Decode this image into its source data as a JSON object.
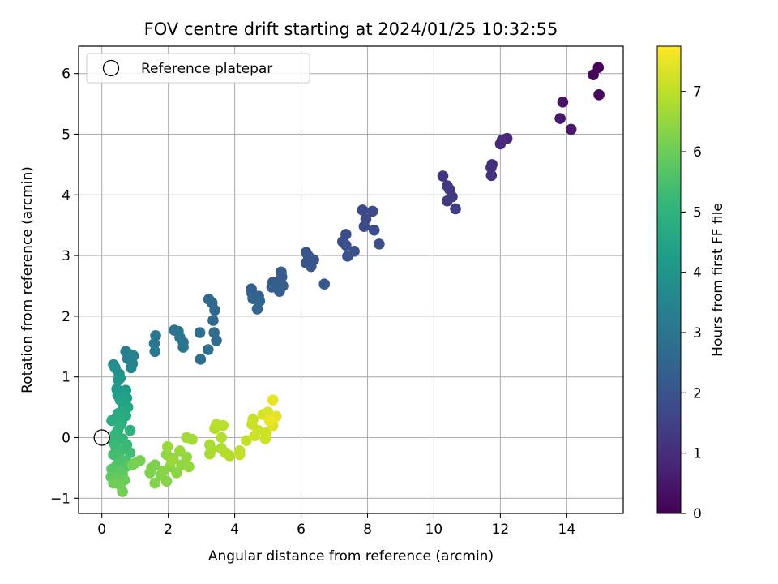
{
  "chart_data": {
    "type": "scatter",
    "title": "FOV centre drift starting at 2024/01/25 10:32:55",
    "xlabel": "Angular distance from reference (arcmin)",
    "ylabel": "Rotation from reference (arcmin)",
    "xlim": [
      -0.7,
      15.7
    ],
    "ylim": [
      -1.25,
      6.45
    ],
    "x_ticks": [
      0,
      2,
      4,
      6,
      8,
      10,
      12,
      14
    ],
    "y_ticks": [
      -1,
      0,
      1,
      2,
      3,
      4,
      5,
      6
    ],
    "grid": true,
    "legend": {
      "placement": "top-left",
      "entries": [
        {
          "label": "Reference platepar",
          "marker": "open-circle"
        }
      ]
    },
    "reference_point": {
      "x": 0,
      "y": 0
    },
    "colorbar": {
      "label": "Hours from first FF file",
      "colormap": "viridis",
      "range": [
        0,
        7.75
      ],
      "ticks": [
        0,
        1,
        2,
        3,
        4,
        5,
        6,
        7
      ]
    },
    "points": [
      {
        "x": 14.95,
        "y": 6.1,
        "h": 0.05
      },
      {
        "x": 14.8,
        "y": 5.98,
        "h": 0.1
      },
      {
        "x": 14.97,
        "y": 5.65,
        "h": 0.15
      },
      {
        "x": 13.88,
        "y": 5.53,
        "h": 0.45
      },
      {
        "x": 13.8,
        "y": 5.26,
        "h": 0.5
      },
      {
        "x": 14.13,
        "y": 5.08,
        "h": 0.55
      },
      {
        "x": 12.2,
        "y": 4.93,
        "h": 0.85
      },
      {
        "x": 12.05,
        "y": 4.9,
        "h": 0.9
      },
      {
        "x": 12.0,
        "y": 4.84,
        "h": 0.95
      },
      {
        "x": 11.75,
        "y": 4.5,
        "h": 1.0
      },
      {
        "x": 11.72,
        "y": 4.45,
        "h": 1.05
      },
      {
        "x": 11.73,
        "y": 4.32,
        "h": 1.1
      },
      {
        "x": 10.27,
        "y": 4.31,
        "h": 1.2
      },
      {
        "x": 10.4,
        "y": 4.15,
        "h": 1.25
      },
      {
        "x": 10.47,
        "y": 4.09,
        "h": 1.3
      },
      {
        "x": 10.55,
        "y": 3.97,
        "h": 1.35
      },
      {
        "x": 10.4,
        "y": 3.9,
        "h": 1.4
      },
      {
        "x": 10.65,
        "y": 3.77,
        "h": 1.45
      },
      {
        "x": 7.85,
        "y": 3.75,
        "h": 1.7
      },
      {
        "x": 8.15,
        "y": 3.73,
        "h": 1.72
      },
      {
        "x": 7.95,
        "y": 3.6,
        "h": 1.75
      },
      {
        "x": 7.9,
        "y": 3.48,
        "h": 1.78
      },
      {
        "x": 8.2,
        "y": 3.42,
        "h": 1.8
      },
      {
        "x": 8.35,
        "y": 3.19,
        "h": 1.82
      },
      {
        "x": 7.35,
        "y": 3.35,
        "h": 1.85
      },
      {
        "x": 7.25,
        "y": 3.23,
        "h": 1.88
      },
      {
        "x": 7.35,
        "y": 3.17,
        "h": 1.9
      },
      {
        "x": 7.6,
        "y": 3.07,
        "h": 1.92
      },
      {
        "x": 7.4,
        "y": 2.99,
        "h": 1.95
      },
      {
        "x": 6.15,
        "y": 3.05,
        "h": 2.0
      },
      {
        "x": 6.22,
        "y": 2.99,
        "h": 2.03
      },
      {
        "x": 6.38,
        "y": 2.93,
        "h": 2.05
      },
      {
        "x": 6.15,
        "y": 2.88,
        "h": 2.08
      },
      {
        "x": 6.3,
        "y": 2.82,
        "h": 2.1
      },
      {
        "x": 6.7,
        "y": 2.53,
        "h": 2.12
      },
      {
        "x": 5.4,
        "y": 2.73,
        "h": 2.2
      },
      {
        "x": 5.42,
        "y": 2.65,
        "h": 2.22
      },
      {
        "x": 5.15,
        "y": 2.56,
        "h": 2.25
      },
      {
        "x": 5.25,
        "y": 2.52,
        "h": 2.28
      },
      {
        "x": 5.45,
        "y": 2.5,
        "h": 2.3
      },
      {
        "x": 5.12,
        "y": 2.48,
        "h": 2.32
      },
      {
        "x": 5.35,
        "y": 2.41,
        "h": 2.35
      },
      {
        "x": 4.5,
        "y": 2.45,
        "h": 2.4
      },
      {
        "x": 4.52,
        "y": 2.38,
        "h": 2.42
      },
      {
        "x": 4.72,
        "y": 2.33,
        "h": 2.45
      },
      {
        "x": 4.55,
        "y": 2.29,
        "h": 2.48
      },
      {
        "x": 4.75,
        "y": 2.25,
        "h": 2.5
      },
      {
        "x": 4.68,
        "y": 2.12,
        "h": 2.52
      },
      {
        "x": 3.22,
        "y": 2.28,
        "h": 2.6
      },
      {
        "x": 3.32,
        "y": 2.22,
        "h": 2.62
      },
      {
        "x": 3.4,
        "y": 2.1,
        "h": 2.65
      },
      {
        "x": 3.35,
        "y": 1.93,
        "h": 2.68
      },
      {
        "x": 3.38,
        "y": 1.73,
        "h": 2.7
      },
      {
        "x": 3.45,
        "y": 1.6,
        "h": 2.72
      },
      {
        "x": 2.95,
        "y": 1.73,
        "h": 2.75
      },
      {
        "x": 3.2,
        "y": 1.45,
        "h": 2.78
      },
      {
        "x": 2.97,
        "y": 1.29,
        "h": 2.8
      },
      {
        "x": 2.18,
        "y": 1.77,
        "h": 2.9
      },
      {
        "x": 2.3,
        "y": 1.75,
        "h": 2.92
      },
      {
        "x": 2.35,
        "y": 1.65,
        "h": 2.95
      },
      {
        "x": 2.45,
        "y": 1.57,
        "h": 2.98
      },
      {
        "x": 2.45,
        "y": 1.49,
        "h": 3.0
      },
      {
        "x": 1.62,
        "y": 1.68,
        "h": 3.1
      },
      {
        "x": 1.58,
        "y": 1.55,
        "h": 3.12
      },
      {
        "x": 1.6,
        "y": 1.42,
        "h": 3.15
      },
      {
        "x": 0.72,
        "y": 1.42,
        "h": 3.3
      },
      {
        "x": 0.85,
        "y": 1.37,
        "h": 3.35
      },
      {
        "x": 0.95,
        "y": 1.35,
        "h": 3.4
      },
      {
        "x": 0.78,
        "y": 1.3,
        "h": 3.45
      },
      {
        "x": 0.92,
        "y": 1.22,
        "h": 3.5
      },
      {
        "x": 0.88,
        "y": 1.15,
        "h": 3.55
      },
      {
        "x": 0.35,
        "y": 1.2,
        "h": 3.7
      },
      {
        "x": 0.4,
        "y": 1.15,
        "h": 3.8
      },
      {
        "x": 0.52,
        "y": 1.05,
        "h": 3.9
      },
      {
        "x": 0.55,
        "y": 0.98,
        "h": 4.0
      },
      {
        "x": 0.5,
        "y": 0.95,
        "h": 4.1
      },
      {
        "x": 0.45,
        "y": 0.8,
        "h": 4.2
      },
      {
        "x": 0.72,
        "y": 0.78,
        "h": 4.25
      },
      {
        "x": 0.6,
        "y": 0.72,
        "h": 4.3
      },
      {
        "x": 0.48,
        "y": 0.7,
        "h": 4.35
      },
      {
        "x": 0.75,
        "y": 0.65,
        "h": 4.4
      },
      {
        "x": 0.55,
        "y": 0.62,
        "h": 4.45
      },
      {
        "x": 0.65,
        "y": 0.55,
        "h": 4.5
      },
      {
        "x": 0.78,
        "y": 0.5,
        "h": 4.55
      },
      {
        "x": 0.62,
        "y": 0.45,
        "h": 4.6
      },
      {
        "x": 0.5,
        "y": 0.4,
        "h": 4.65
      },
      {
        "x": 0.72,
        "y": 0.36,
        "h": 4.7
      },
      {
        "x": 0.45,
        "y": 0.33,
        "h": 4.75
      },
      {
        "x": 0.3,
        "y": 0.28,
        "h": 4.8
      },
      {
        "x": 0.6,
        "y": 0.26,
        "h": 4.85
      },
      {
        "x": 0.55,
        "y": 0.2,
        "h": 4.9
      },
      {
        "x": 0.48,
        "y": 0.12,
        "h": 4.95
      },
      {
        "x": 0.85,
        "y": 0.12,
        "h": 5.0
      },
      {
        "x": 0.4,
        "y": 0.05,
        "h": 5.05
      },
      {
        "x": 0.62,
        "y": -0.02,
        "h": 5.1
      },
      {
        "x": 0.35,
        "y": -0.08,
        "h": 5.15
      },
      {
        "x": 0.75,
        "y": -0.12,
        "h": 5.2
      },
      {
        "x": 0.42,
        "y": -0.15,
        "h": 5.25
      },
      {
        "x": 0.55,
        "y": -0.22,
        "h": 5.3
      },
      {
        "x": 0.85,
        "y": -0.25,
        "h": 5.35
      },
      {
        "x": 0.35,
        "y": -0.28,
        "h": 5.4
      },
      {
        "x": 0.5,
        "y": -0.32,
        "h": 5.45
      },
      {
        "x": 0.65,
        "y": -0.38,
        "h": 5.5
      },
      {
        "x": 0.78,
        "y": -0.42,
        "h": 5.55
      },
      {
        "x": 0.45,
        "y": -0.45,
        "h": 5.6
      },
      {
        "x": 0.72,
        "y": -0.48,
        "h": 5.65
      },
      {
        "x": 0.3,
        "y": -0.52,
        "h": 5.7
      },
      {
        "x": 0.55,
        "y": -0.55,
        "h": 5.75
      },
      {
        "x": 0.62,
        "y": -0.6,
        "h": 5.8
      },
      {
        "x": 0.28,
        "y": -0.65,
        "h": 5.85
      },
      {
        "x": 0.45,
        "y": -0.68,
        "h": 5.9
      },
      {
        "x": 0.68,
        "y": -0.7,
        "h": 5.95
      },
      {
        "x": 0.35,
        "y": -0.75,
        "h": 6.0
      },
      {
        "x": 0.55,
        "y": -0.78,
        "h": 6.05
      },
      {
        "x": 0.62,
        "y": -0.89,
        "h": 6.1
      },
      {
        "x": 0.92,
        "y": -0.45,
        "h": 6.12
      },
      {
        "x": 1.15,
        "y": -0.38,
        "h": 6.15
      },
      {
        "x": 1.0,
        "y": -0.42,
        "h": 6.18
      },
      {
        "x": 1.5,
        "y": -0.5,
        "h": 6.2
      },
      {
        "x": 1.6,
        "y": -0.45,
        "h": 6.22
      },
      {
        "x": 1.45,
        "y": -0.58,
        "h": 6.25
      },
      {
        "x": 1.6,
        "y": -0.75,
        "h": 6.28
      },
      {
        "x": 1.78,
        "y": -0.62,
        "h": 6.3
      },
      {
        "x": 1.95,
        "y": -0.72,
        "h": 6.32
      },
      {
        "x": 1.85,
        "y": -0.55,
        "h": 6.35
      },
      {
        "x": 2.05,
        "y": -0.48,
        "h": 6.38
      },
      {
        "x": 2.25,
        "y": -0.58,
        "h": 6.4
      },
      {
        "x": 2.15,
        "y": -0.35,
        "h": 6.42
      },
      {
        "x": 2.4,
        "y": -0.45,
        "h": 6.45
      },
      {
        "x": 1.95,
        "y": -0.28,
        "h": 6.48
      },
      {
        "x": 2.55,
        "y": -0.32,
        "h": 6.5
      },
      {
        "x": 2.62,
        "y": -0.48,
        "h": 6.52
      },
      {
        "x": 2.35,
        "y": -0.22,
        "h": 6.55
      },
      {
        "x": 1.98,
        "y": -0.15,
        "h": 6.58
      },
      {
        "x": 2.1,
        "y": -0.38,
        "h": 6.6
      },
      {
        "x": 2.55,
        "y": 0.0,
        "h": 6.65
      },
      {
        "x": 2.72,
        "y": -0.03,
        "h": 6.68
      },
      {
        "x": 3.25,
        "y": -0.12,
        "h": 6.75
      },
      {
        "x": 3.3,
        "y": -0.2,
        "h": 6.78
      },
      {
        "x": 3.25,
        "y": -0.27,
        "h": 6.8
      },
      {
        "x": 3.6,
        "y": -0.18,
        "h": 6.82
      },
      {
        "x": 3.72,
        "y": -0.25,
        "h": 6.85
      },
      {
        "x": 3.85,
        "y": -0.3,
        "h": 6.88
      },
      {
        "x": 3.6,
        "y": 0.0,
        "h": 6.9
      },
      {
        "x": 3.4,
        "y": 0.15,
        "h": 6.92
      },
      {
        "x": 3.45,
        "y": 0.22,
        "h": 6.95
      },
      {
        "x": 3.65,
        "y": 0.2,
        "h": 6.98
      },
      {
        "x": 4.15,
        "y": -0.22,
        "h": 7.0
      },
      {
        "x": 4.15,
        "y": -0.28,
        "h": 7.02
      },
      {
        "x": 4.35,
        "y": -0.05,
        "h": 7.05
      },
      {
        "x": 4.52,
        "y": 0.22,
        "h": 7.1
      },
      {
        "x": 4.55,
        "y": 0.3,
        "h": 7.12
      },
      {
        "x": 4.7,
        "y": 0.12,
        "h": 7.15
      },
      {
        "x": 4.6,
        "y": 0.03,
        "h": 7.18
      },
      {
        "x": 4.95,
        "y": 0.08,
        "h": 7.2
      },
      {
        "x": 4.92,
        "y": -0.02,
        "h": 7.22
      },
      {
        "x": 4.85,
        "y": 0.38,
        "h": 7.28
      },
      {
        "x": 5.0,
        "y": 0.42,
        "h": 7.32
      },
      {
        "x": 5.1,
        "y": 0.3,
        "h": 7.36
      },
      {
        "x": 5.15,
        "y": 0.2,
        "h": 7.4
      },
      {
        "x": 5.25,
        "y": 0.35,
        "h": 7.44
      },
      {
        "x": 5.15,
        "y": 0.62,
        "h": 7.5
      },
      {
        "x": 5.05,
        "y": 0.28,
        "h": 7.55
      }
    ]
  }
}
